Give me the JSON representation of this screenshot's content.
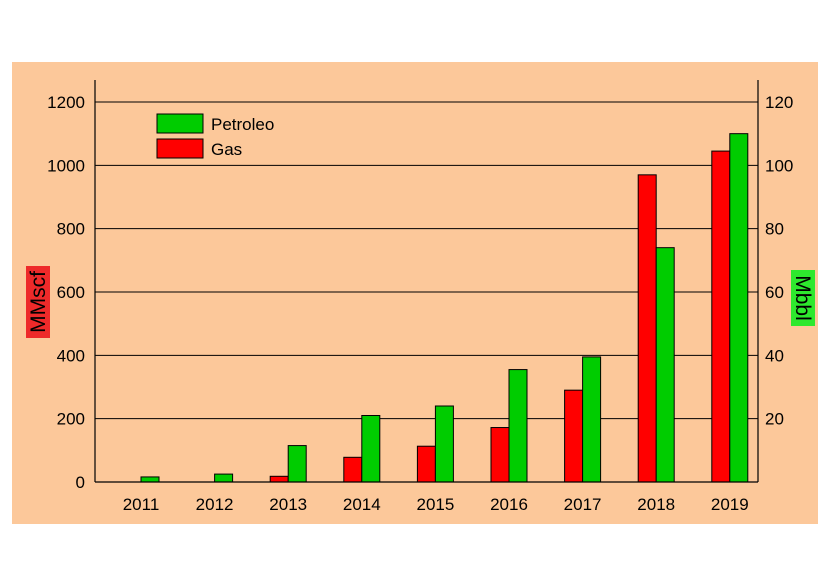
{
  "chart_data": {
    "type": "bar",
    "categories": [
      "2011",
      "2012",
      "2013",
      "2014",
      "2015",
      "2016",
      "2017",
      "2018",
      "2019"
    ],
    "series": [
      {
        "name": "Gas",
        "axis": "left",
        "color": "#ff0000",
        "values": [
          0,
          0,
          18,
          78,
          113,
          172,
          290,
          970,
          1045
        ]
      },
      {
        "name": "Petroleo",
        "axis": "right",
        "color": "#00cc00",
        "values": [
          1.6,
          2.5,
          11.5,
          21,
          24,
          35.5,
          39.5,
          74,
          110
        ]
      }
    ],
    "legend_order": [
      "Petroleo",
      "Gas"
    ],
    "ylabel_left": "MMscf",
    "ylabel_right": "Mbbl",
    "ylim_left": [
      0,
      1200
    ],
    "ylim_right": [
      0,
      120
    ],
    "yticks_left": [
      0,
      200,
      400,
      600,
      800,
      1000,
      1200
    ],
    "yticks_right": [
      20,
      40,
      60,
      80,
      100,
      120
    ],
    "grid": true,
    "legend": "top-left",
    "colors": {
      "plot_background": "#fcc89a",
      "grid": "#000000",
      "left_label_bg": "#ee2a2a",
      "right_label_bg": "#2ee82e"
    }
  }
}
